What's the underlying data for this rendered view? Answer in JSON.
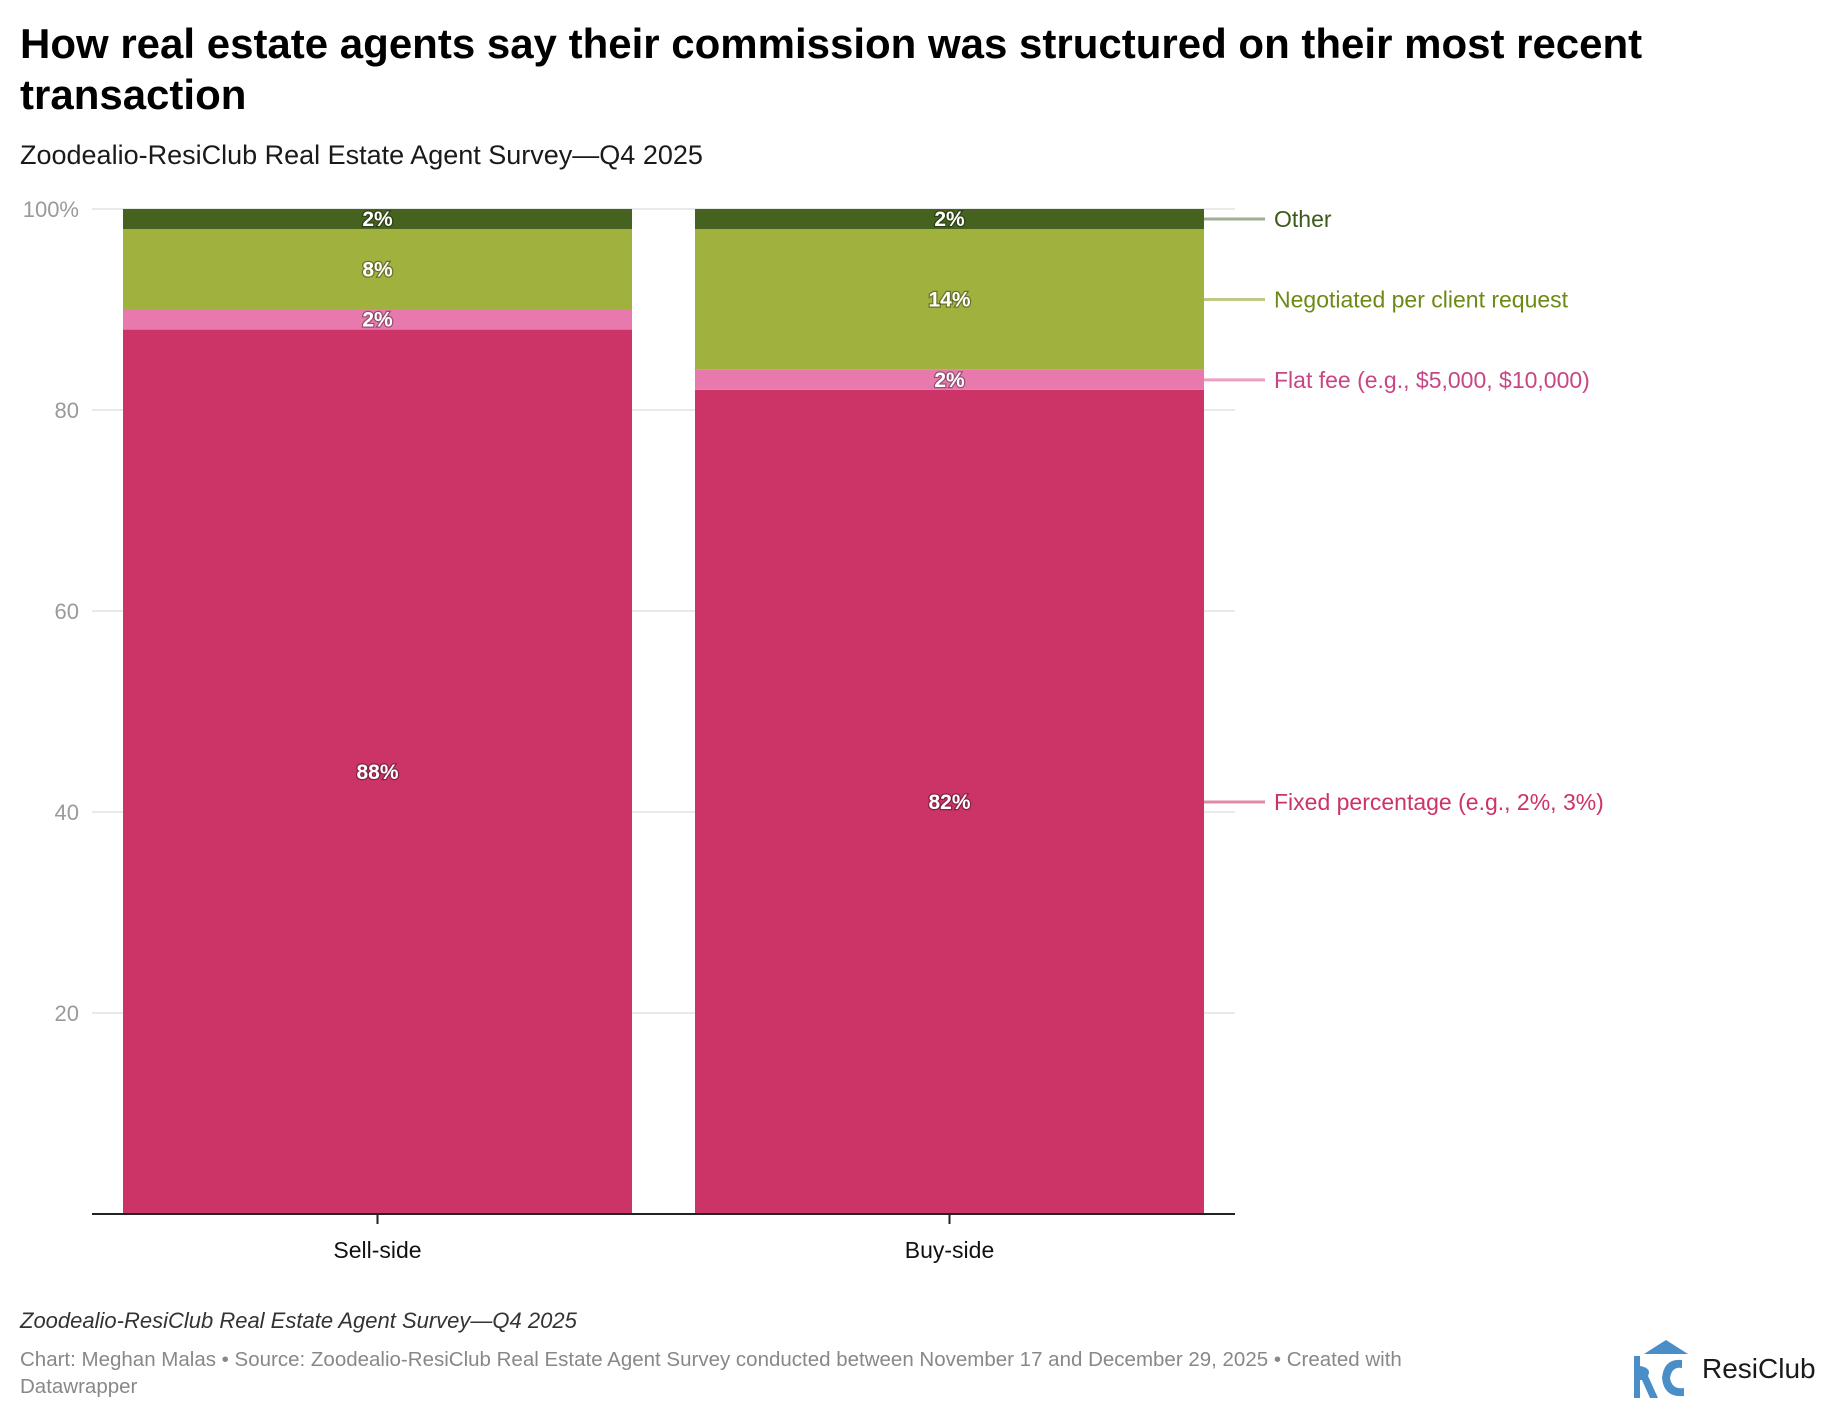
{
  "title": "How real estate agents say their commission was structured on their most recent transaction",
  "subtitle": "Zoodealio-ResiClub Real Estate Agent Survey—Q4 2025",
  "caption": "Zoodealio-ResiClub Real Estate Agent Survey—Q4 2025",
  "footer": "Chart: Meghan Malas • Source: Zoodealio-ResiClub Real Estate Agent Survey conducted between November 17 and December 29, 2025 • Created with Datawrapper",
  "brand": {
    "name": "ResiClub",
    "logo_icon": "rc-house-logo-icon",
    "color": "#4a8ec8"
  },
  "chart_data": {
    "type": "bar",
    "stacked": true,
    "categories": [
      "Sell-side",
      "Buy-side"
    ],
    "series": [
      {
        "name": "Fixed percentage (e.g., 2%, 3%)",
        "values": [
          88,
          82
        ],
        "labels": [
          "88%",
          "82%"
        ],
        "color": "#cc3366",
        "label_color": "#cc3366",
        "connector_color": "#e08aab"
      },
      {
        "name": "Flat fee (e.g., $5,000, $10,000)",
        "values": [
          2,
          2
        ],
        "labels": [
          "2%",
          "2%"
        ],
        "color": "#e879ad",
        "label_color": "#c74683",
        "connector_color": "#eb9fc4"
      },
      {
        "name": "Negotiated per client request",
        "values": [
          8,
          14
        ],
        "labels": [
          "8%",
          "14%"
        ],
        "color": "#a0b13e",
        "label_color": "#6d8a14",
        "connector_color": "#bcca88"
      },
      {
        "name": "Other",
        "values": [
          2,
          2
        ],
        "labels": [
          "2%",
          "2%"
        ],
        "color": "#45621f",
        "label_color": "#3c5a1a",
        "connector_color": "#a3ad94"
      }
    ],
    "ylim": [
      0,
      100
    ],
    "yticks": [
      {
        "value": 20,
        "label": "20"
      },
      {
        "value": 40,
        "label": "40"
      },
      {
        "value": 60,
        "label": "60"
      },
      {
        "value": 80,
        "label": "80"
      },
      {
        "value": 100,
        "label": "100%"
      }
    ],
    "grid": true,
    "legend": "right, inline labels",
    "xlabel": "",
    "ylabel": ""
  }
}
